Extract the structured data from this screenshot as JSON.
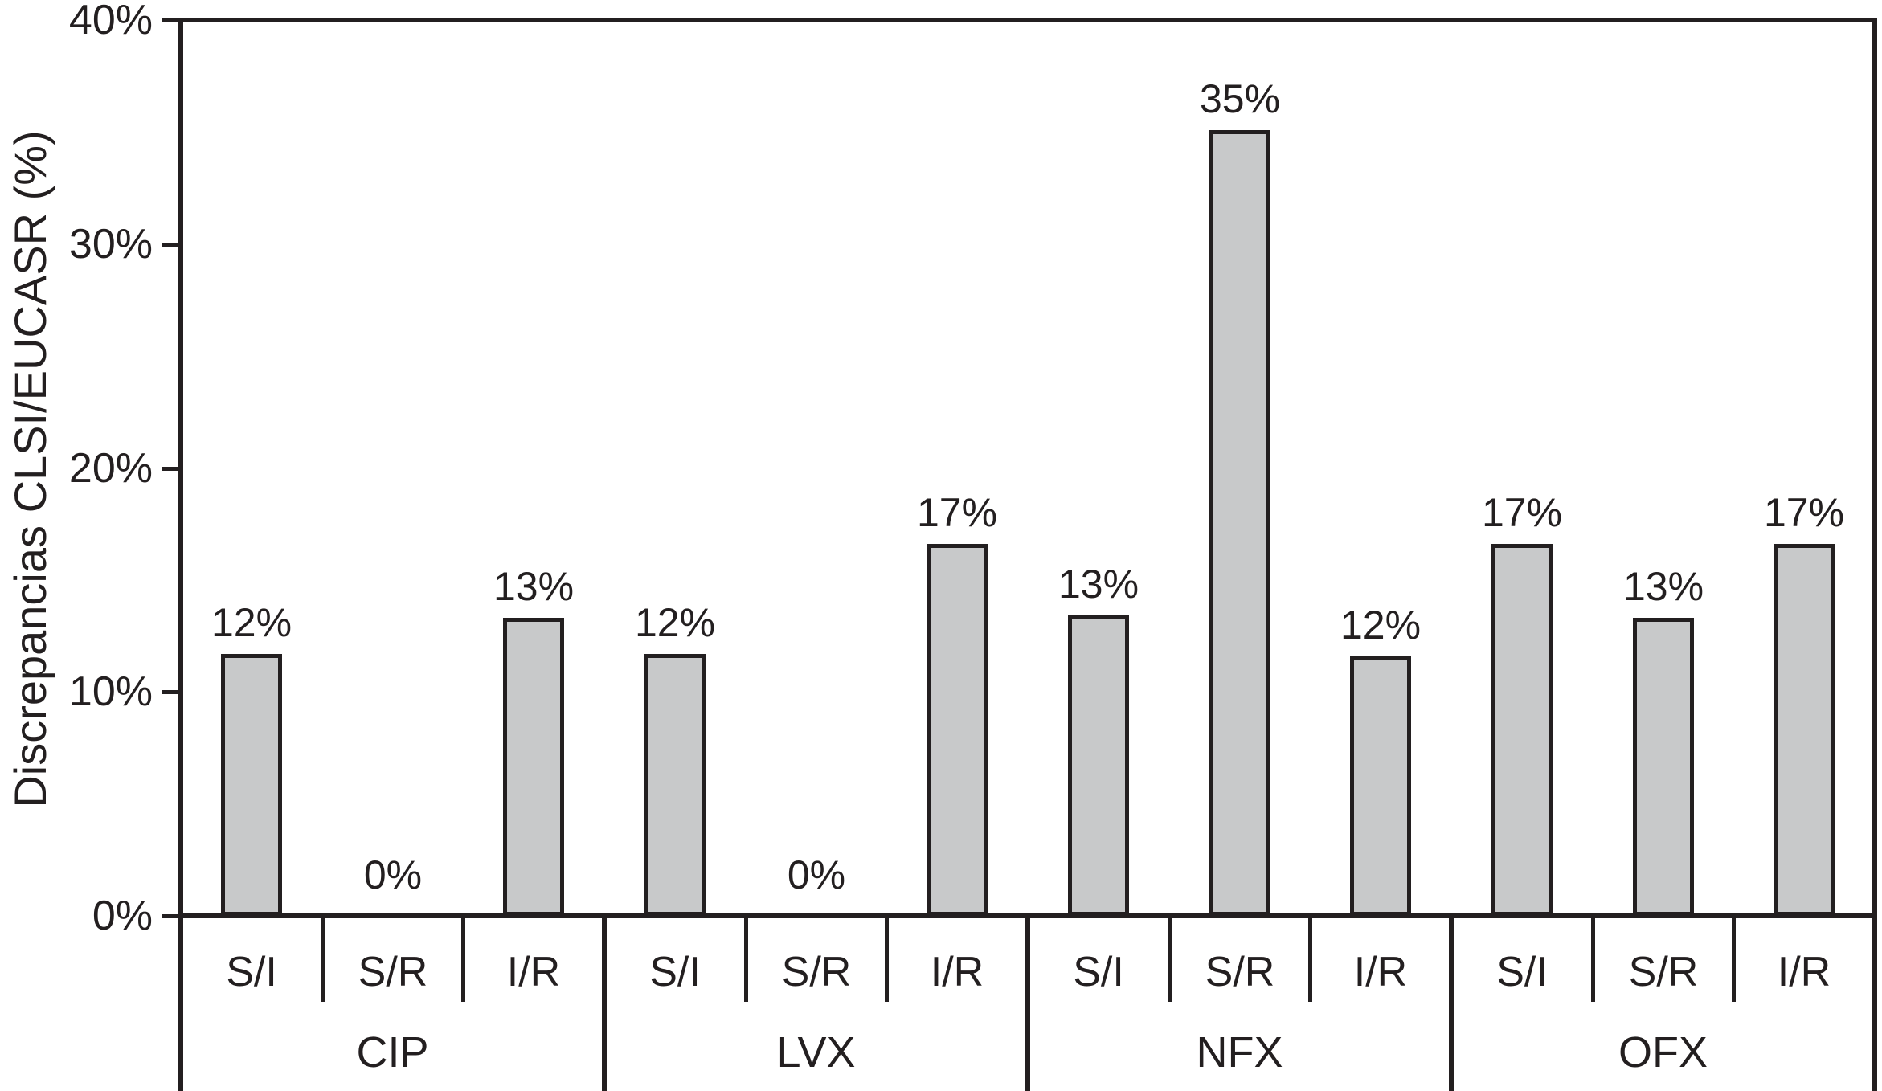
{
  "figure": {
    "background": "#ffffff",
    "text_color": "#231f20"
  },
  "chart_data": {
    "type": "bar",
    "title": "",
    "xlabel": "",
    "ylabel": "Discrepancias CLSI/EUCASR (%)",
    "ylim": [
      0,
      40
    ],
    "ytick_labels": [
      "0%",
      "10%",
      "20%",
      "30%",
      "40%"
    ],
    "grid": false,
    "legend": false,
    "bar_fill": "#c8c9ca",
    "line_color": "#231f20",
    "groups": [
      {
        "name": "CIP",
        "bars": [
          {
            "category": "S/I",
            "value": 12,
            "label": "12%",
            "drawn_pct": 11.7
          },
          {
            "category": "S/R",
            "value": 0,
            "label": "0%",
            "drawn_pct": 0
          },
          {
            "category": "I/R",
            "value": 13,
            "label": "13%",
            "drawn_pct": 13.3
          }
        ]
      },
      {
        "name": "LVX",
        "bars": [
          {
            "category": "S/I",
            "value": 12,
            "label": "12%",
            "drawn_pct": 11.7
          },
          {
            "category": "S/R",
            "value": 0,
            "label": "0%",
            "drawn_pct": 0
          },
          {
            "category": "I/R",
            "value": 17,
            "label": "17%",
            "drawn_pct": 16.6
          }
        ]
      },
      {
        "name": "NFX",
        "bars": [
          {
            "category": "S/I",
            "value": 13,
            "label": "13%",
            "drawn_pct": 13.4
          },
          {
            "category": "S/R",
            "value": 35,
            "label": "35%",
            "drawn_pct": 35.1
          },
          {
            "category": "I/R",
            "value": 12,
            "label": "12%",
            "drawn_pct": 11.6
          }
        ]
      },
      {
        "name": "OFX",
        "bars": [
          {
            "category": "S/I",
            "value": 17,
            "label": "17%",
            "drawn_pct": 16.6
          },
          {
            "category": "S/R",
            "value": 13,
            "label": "13%",
            "drawn_pct": 13.3
          },
          {
            "category": "I/R",
            "value": 17,
            "label": "17%",
            "drawn_pct": 16.6
          }
        ]
      }
    ]
  }
}
